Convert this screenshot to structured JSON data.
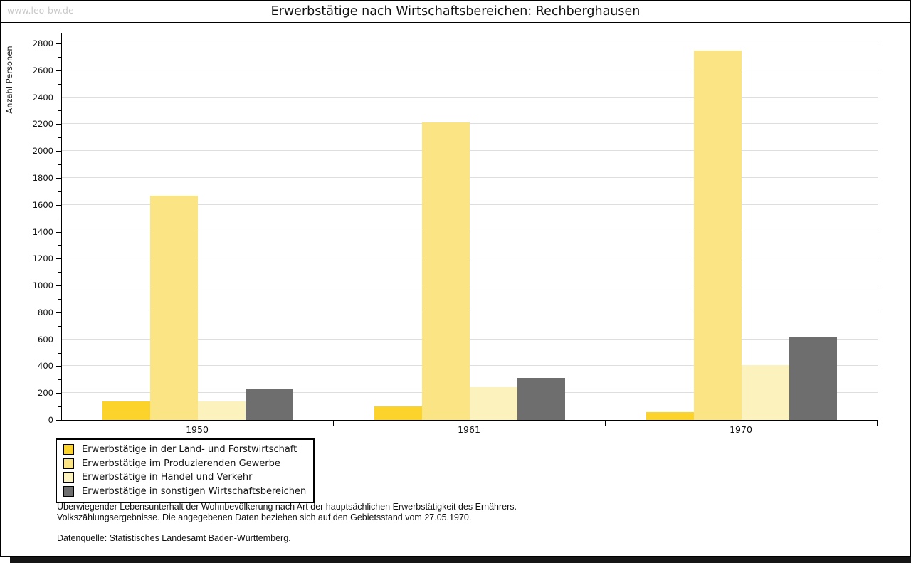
{
  "window": {
    "watermark": "www.leo-bw.de"
  },
  "chart_data": {
    "type": "bar",
    "title": "Erwerbstätige nach Wirtschaftsbereichen: Rechberghausen",
    "ylabel": "Anzahl Personen",
    "xlabel": "",
    "ylim": [
      0,
      2800
    ],
    "ytick_step": 200,
    "yminor_step": 100,
    "grid": true,
    "legend_position": "bottom-left",
    "categories": [
      "1950",
      "1961",
      "1970"
    ],
    "series": [
      {
        "name": "Erwerbstätige in der Land- und Forstwirtschaft",
        "color": "#FBD32B",
        "values": [
          140,
          100,
          60
        ]
      },
      {
        "name": "Erwerbstätige im Produzierenden Gewerbe",
        "color": "#FBE483",
        "values": [
          1665,
          2215,
          2745
        ]
      },
      {
        "name": "Erwerbstätige in Handel und Verkehr",
        "color": "#FBF2BE",
        "values": [
          140,
          245,
          410
        ]
      },
      {
        "name": "Erwerbstätige in sonstigen Wirtschaftsbereichen",
        "color": "#6E6E6E",
        "values": [
          225,
          310,
          620
        ]
      }
    ],
    "colors": {
      "gridline": "#DEDEDE",
      "axis": "#000000",
      "watermark": "#C9C9C9"
    }
  },
  "footer": {
    "line1": "Überwiegender Lebensunterhalt der Wohnbevölkerung nach Art der hauptsächlichen Erwerbstätigkeit des Ernährers.",
    "line2": "Volkszählungsergebnisse. Die angegebenen Daten beziehen sich auf den Gebietsstand vom 27.05.1970.",
    "source": "Datenquelle: Statistisches Landesamt Baden-Württemberg."
  }
}
